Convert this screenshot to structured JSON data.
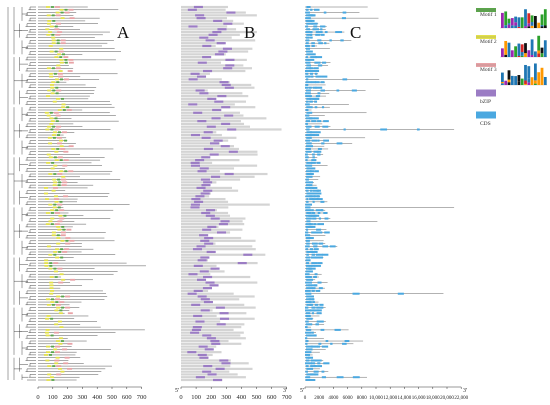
{
  "figure": {
    "panels": {
      "a": {
        "letter": "A"
      },
      "b": {
        "letter": "B"
      },
      "c": {
        "letter": "C"
      }
    },
    "axis_a": {
      "ticks": [
        "0",
        "100",
        "200",
        "300",
        "400",
        "500",
        "600",
        "700"
      ]
    },
    "axis_b": {
      "start": "5'",
      "end": "3'",
      "ticks": [
        "0",
        "100",
        "200",
        "300",
        "400",
        "500",
        "600",
        "700"
      ]
    },
    "axis_c": {
      "start": "5'",
      "end": "3'",
      "ticks": [
        "0",
        "2000",
        "4000",
        "6000",
        "8000",
        "10,000",
        "12,000",
        "14,000",
        "16,000",
        "18,000",
        "20,000",
        "22,000"
      ]
    },
    "legend": [
      {
        "label": "Motif 1",
        "color": "#5aa64a"
      },
      {
        "label": "Motif 2",
        "color": "#e3e04a"
      },
      {
        "label": "Motif 3",
        "color": "#e8a2a6"
      },
      {
        "label": "bZIP",
        "color": "#9b7cc4"
      },
      {
        "label": "CDS",
        "color": "#4aa8e0"
      }
    ],
    "colors": {
      "motif1": "#5aa64a",
      "motif2": "#e3e04a",
      "motif3": "#e8a2a6",
      "bzip": "#9b7cc4",
      "cds": "#4aa8e0",
      "protein_bar": "#d4d4d4",
      "line": "#555555",
      "tree": "#333333"
    },
    "logo_icons": [
      "sequence-logo-motif-1",
      "sequence-logo-motif-2",
      "sequence-logo-motif-3"
    ]
  }
}
